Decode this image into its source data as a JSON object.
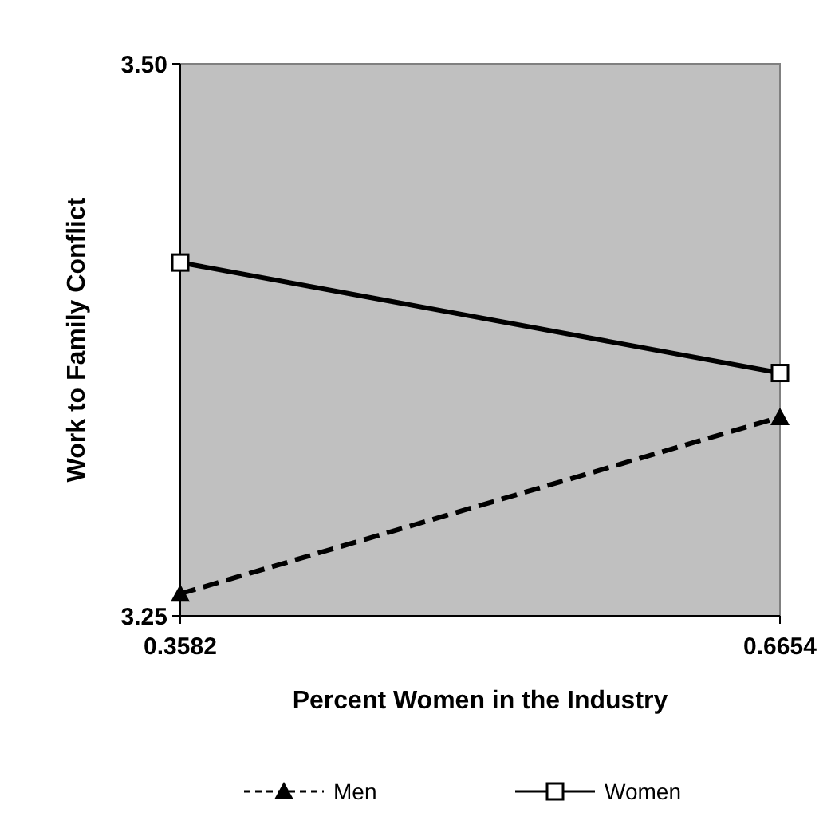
{
  "chart_data": {
    "type": "line",
    "xlabel": "Percent Women in the Industry",
    "ylabel": "Work to Family Conflict",
    "x": [
      0.3582,
      0.6654
    ],
    "xlim": [
      0.3582,
      0.6654
    ],
    "xticks": [
      0.3582,
      0.6654
    ],
    "ylim": [
      3.25,
      3.5
    ],
    "yticks": [
      {
        "value": 3.25,
        "label": "3.25"
      },
      {
        "value": 3.5,
        "label": "3.50"
      }
    ],
    "series": [
      {
        "name": "Men",
        "color": "#000000",
        "values": [
          3.26,
          3.34
        ],
        "marker": "triangle",
        "line_style": "dashed"
      },
      {
        "name": "Women",
        "color": "#000000",
        "values": [
          3.41,
          3.36
        ],
        "marker": "square",
        "line_style": "solid"
      }
    ],
    "legend": "bottom"
  }
}
